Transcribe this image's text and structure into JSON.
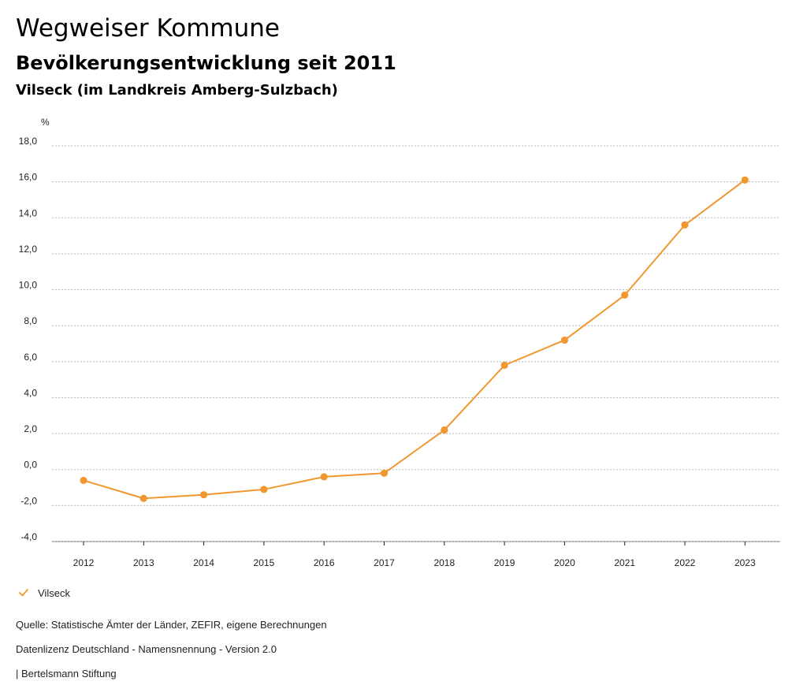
{
  "header": {
    "title": "Wegweiser Kommune",
    "subtitle": "Bevölkerungsentwicklung seit 2011",
    "region": "Vilseck (im Landkreis Amberg-Sulzbach)"
  },
  "colors": {
    "series": "#f0982f",
    "grid": "#b5b5b5",
    "axis": "#222222"
  },
  "chart_data": {
    "type": "line",
    "title": "Bevölkerungsentwicklung seit 2011",
    "ylabel": "%",
    "xlabel": "",
    "ylim": [
      -4.0,
      18.0
    ],
    "yticks": [
      -4.0,
      -2.0,
      0.0,
      2.0,
      4.0,
      6.0,
      8.0,
      10.0,
      12.0,
      14.0,
      16.0,
      18.0
    ],
    "ytick_labels": [
      "-4,0",
      "-2,0",
      "0,0",
      "2,0",
      "4,0",
      "6,0",
      "8,0",
      "10,0",
      "12,0",
      "14,0",
      "16,0",
      "18,0"
    ],
    "categories": [
      "2012",
      "2013",
      "2014",
      "2015",
      "2016",
      "2017",
      "2018",
      "2019",
      "2020",
      "2021",
      "2022",
      "2023"
    ],
    "grid": true,
    "legend_position": "bottom-left",
    "series": [
      {
        "name": "Vilseck",
        "values": [
          -0.6,
          -1.6,
          -1.4,
          -1.1,
          -0.4,
          -0.2,
          2.2,
          5.8,
          7.2,
          9.7,
          13.6,
          16.1
        ]
      }
    ]
  },
  "legend": {
    "items": [
      {
        "label": "Vilseck",
        "icon": "check-icon"
      }
    ]
  },
  "footer": {
    "source": "Quelle: Statistische Ämter der Länder, ZEFIR, eigene Berechnungen",
    "license": "Datenlizenz Deutschland - Namensnennung - Version 2.0",
    "publisher": "| Bertelsmann Stiftung"
  }
}
